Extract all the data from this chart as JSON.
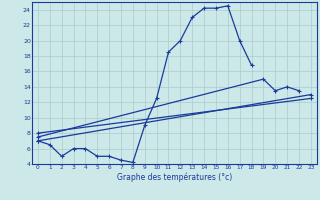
{
  "xlabel": "Graphe des températures (°c)",
  "background_color": "#cce8e8",
  "grid_color": "#aacccc",
  "line_color": "#1a3a9c",
  "hours": [
    0,
    1,
    2,
    3,
    4,
    5,
    6,
    7,
    8,
    9,
    10,
    11,
    12,
    13,
    14,
    15,
    16,
    17,
    18,
    19,
    20,
    21,
    22,
    23
  ],
  "temp_main": [
    7.0,
    6.5,
    5.0,
    6.0,
    6.0,
    5.0,
    5.0,
    4.5,
    4.2,
    9.0,
    12.5,
    18.5,
    20.0,
    23.0,
    24.2,
    24.2,
    24.5,
    20.0,
    16.8,
    null,
    null,
    null,
    null,
    null
  ],
  "line2_x": [
    0,
    23
  ],
  "line2_y": [
    7.0,
    13.0
  ],
  "line3_x": [
    0,
    19,
    20,
    21,
    22
  ],
  "line3_y": [
    7.5,
    15.0,
    13.5,
    14.0,
    13.5
  ],
  "line4_x": [
    0,
    23
  ],
  "line4_y": [
    8.0,
    12.5
  ],
  "ylim": [
    4,
    25
  ],
  "xlim": [
    -0.5,
    23.5
  ],
  "yticks": [
    4,
    6,
    8,
    10,
    12,
    14,
    16,
    18,
    20,
    22,
    24
  ],
  "xticks": [
    0,
    1,
    2,
    3,
    4,
    5,
    6,
    7,
    8,
    9,
    10,
    11,
    12,
    13,
    14,
    15,
    16,
    17,
    18,
    19,
    20,
    21,
    22,
    23
  ],
  "tick_fontsize": 4.2,
  "xlabel_fontsize": 5.5
}
